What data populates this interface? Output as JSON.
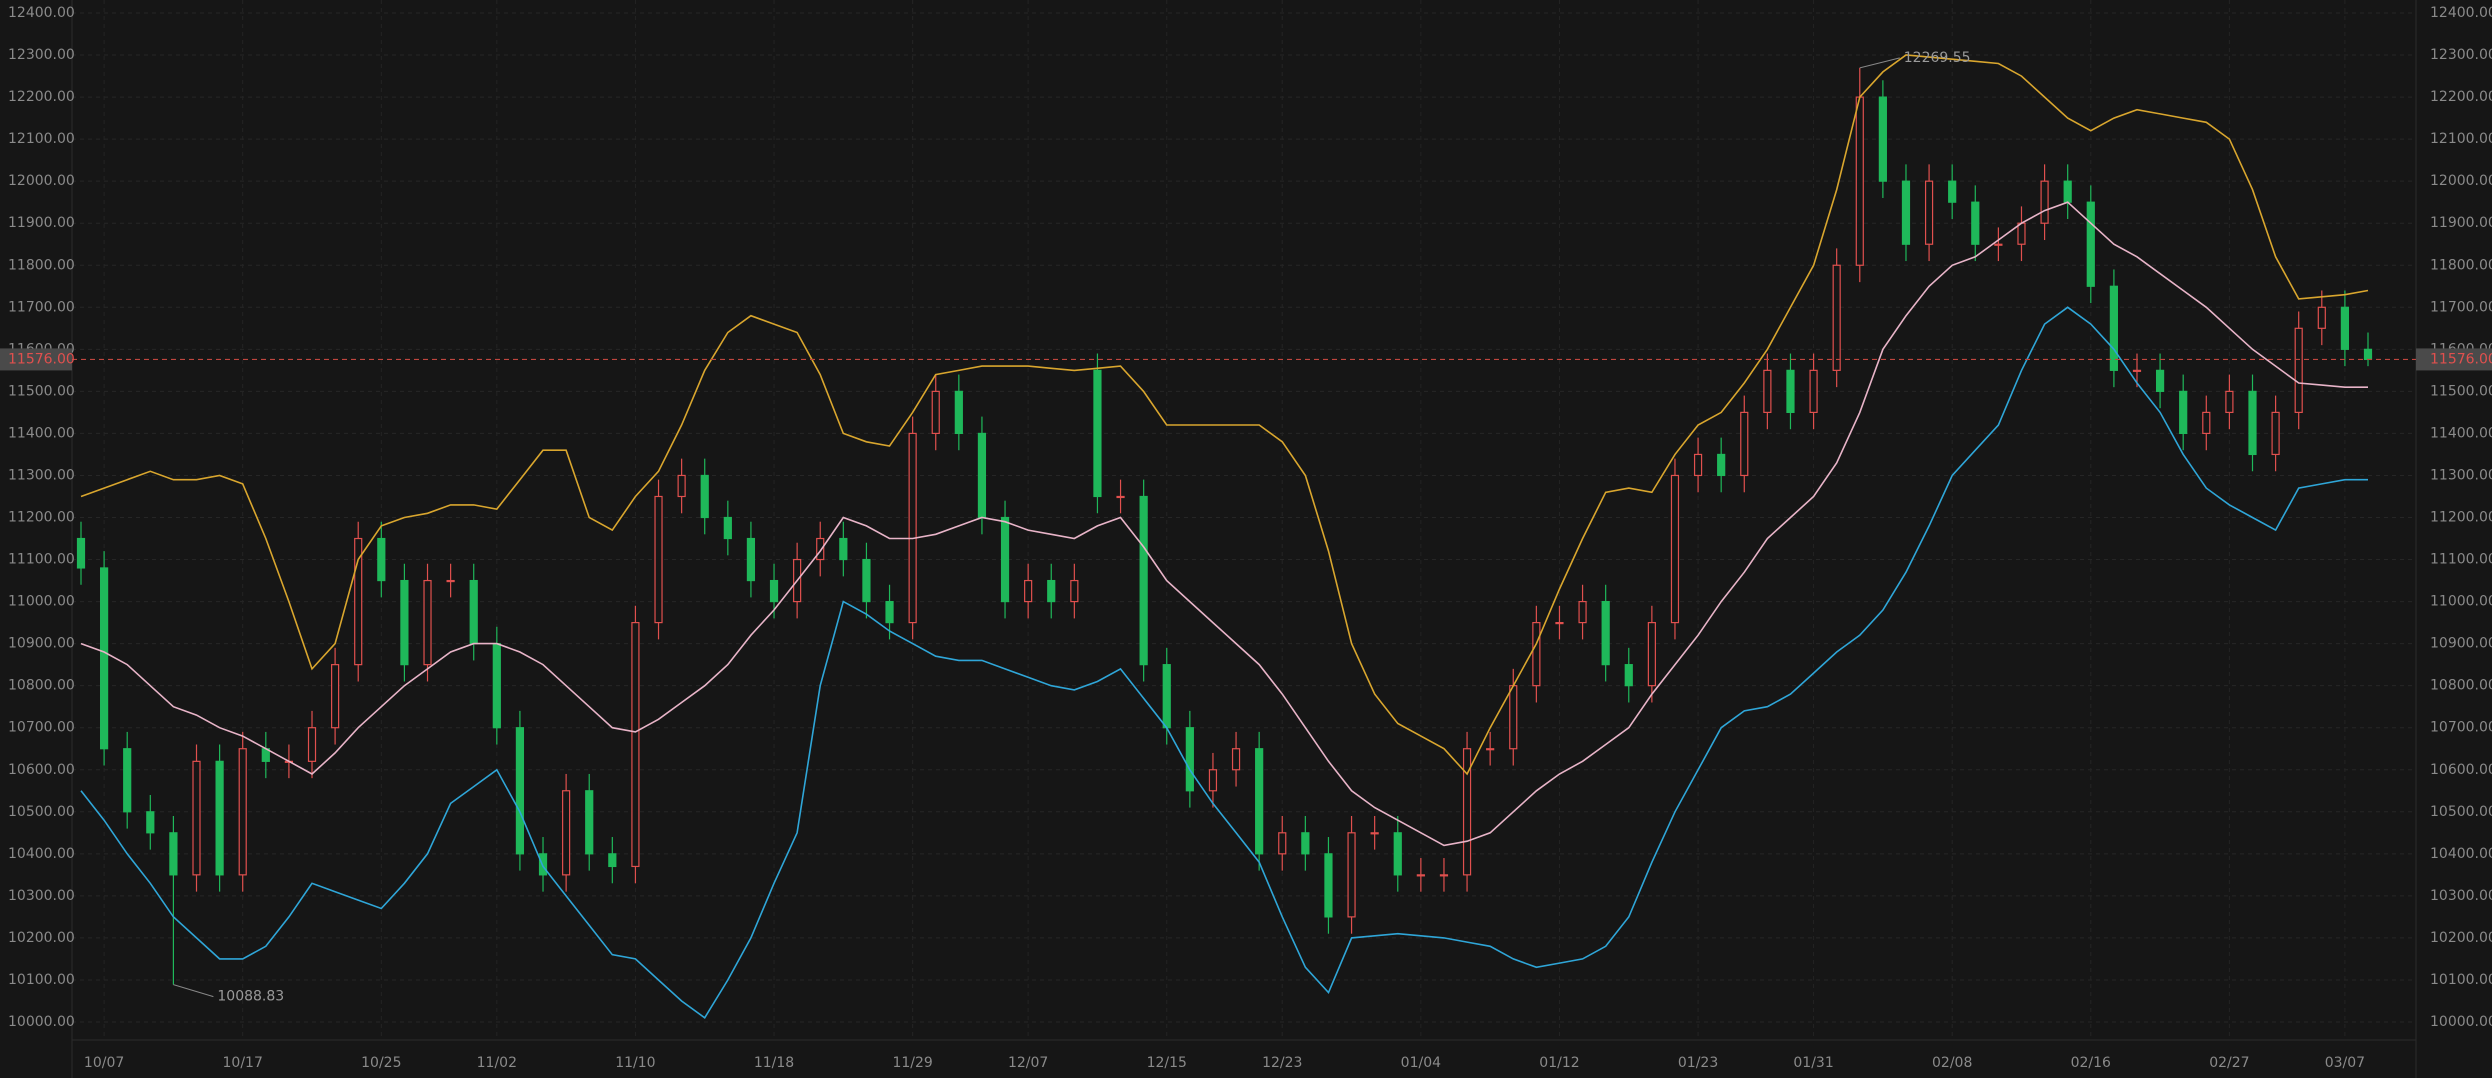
{
  "chart_data": {
    "type": "candlestick",
    "categories": [
      null,
      "10/07",
      null,
      null,
      null,
      null,
      null,
      "10/17",
      null,
      null,
      null,
      null,
      null,
      "10/25",
      null,
      null,
      null,
      null,
      "11/02",
      null,
      null,
      null,
      null,
      null,
      "11/10",
      null,
      null,
      null,
      null,
      null,
      "11/18",
      null,
      null,
      null,
      null,
      null,
      "11/29",
      null,
      null,
      null,
      null,
      "12/07",
      null,
      null,
      null,
      null,
      null,
      "12/15",
      null,
      null,
      null,
      null,
      "12/23",
      null,
      null,
      null,
      null,
      null,
      "01/04",
      null,
      null,
      null,
      null,
      null,
      "01/12",
      null,
      null,
      null,
      null,
      null,
      "01/23",
      null,
      null,
      null,
      null,
      "01/31",
      null,
      null,
      null,
      null,
      null,
      "02/08",
      null,
      null,
      null,
      null,
      null,
      "02/16",
      null,
      null,
      null,
      null,
      null,
      "02/27",
      null,
      null,
      null,
      null,
      "03/07",
      null
    ],
    "open": [
      11150,
      11080,
      10650,
      10500,
      10450,
      10350,
      10620,
      10350,
      10650,
      10620,
      10620,
      10700,
      10850,
      11150,
      11050,
      10850,
      11050,
      11050,
      10900,
      10700,
      10400,
      10350,
      10550,
      10400,
      10370,
      10950,
      11250,
      11300,
      11200,
      11150,
      11050,
      11000,
      11100,
      11150,
      11100,
      11000,
      10950,
      11400,
      11500,
      11400,
      11200,
      11000,
      11050,
      11000,
      11550,
      11250,
      11250,
      10850,
      10700,
      10550,
      10600,
      10650,
      10400,
      10450,
      10400,
      10250,
      10450,
      10450,
      10350,
      10350,
      10350,
      10650,
      10650,
      10800,
      10950,
      10950,
      11000,
      10850,
      10800,
      10950,
      11300,
      11350,
      11300,
      11450,
      11550,
      11450,
      11550,
      11800,
      12200,
      12000,
      11850,
      12000,
      11950,
      11850,
      11850,
      11900,
      12000,
      11950,
      11750,
      11550,
      11550,
      11500,
      11400,
      11450,
      11500,
      11350,
      11450,
      11650,
      11700,
      11600
    ],
    "high": [
      11190,
      11120,
      10690,
      10540,
      10490,
      10660,
      10660,
      10690,
      10690,
      10660,
      10740,
      10890,
      11190,
      11190,
      11090,
      11090,
      11090,
      11090,
      10940,
      10740,
      10440,
      10590,
      10590,
      10440,
      10990,
      11290,
      11340,
      11340,
      11240,
      11190,
      11090,
      11140,
      11190,
      11190,
      11140,
      11040,
      11440,
      11540,
      11540,
      11440,
      11240,
      11090,
      11090,
      11090,
      11590,
      11290,
      11290,
      10890,
      10740,
      10640,
      10690,
      10690,
      10490,
      10490,
      10440,
      10490,
      10490,
      10490,
      10390,
      10390,
      10690,
      10690,
      10840,
      10990,
      10990,
      11040,
      11040,
      10890,
      10990,
      11340,
      11390,
      11390,
      11490,
      11590,
      11590,
      11590,
      11840,
      12269.55,
      12240,
      12040,
      12040,
      12040,
      11990,
      11890,
      11940,
      12040,
      12040,
      11990,
      11790,
      11590,
      11590,
      11540,
      11490,
      11540,
      11540,
      11490,
      11690,
      11740,
      11740,
      11640
    ],
    "low": [
      11040,
      10610,
      10460,
      10410,
      10088.83,
      10310,
      10310,
      10310,
      10580,
      10580,
      10580,
      10660,
      10810,
      11010,
      10810,
      10810,
      11010,
      10860,
      10660,
      10360,
      10310,
      10310,
      10360,
      10330,
      10330,
      10910,
      11210,
      11160,
      11110,
      11010,
      10960,
      10960,
      11060,
      11060,
      10960,
      10910,
      10910,
      11360,
      11360,
      11160,
      10960,
      10960,
      10960,
      10960,
      11210,
      11210,
      10810,
      10660,
      10510,
      10510,
      10560,
      10360,
      10360,
      10360,
      10210,
      10210,
      10410,
      10310,
      10310,
      10310,
      10310,
      10610,
      10610,
      10760,
      10910,
      10910,
      10810,
      10760,
      10760,
      10910,
      11260,
      11260,
      11260,
      11410,
      11410,
      11410,
      11510,
      11760,
      11960,
      11810,
      11810,
      11910,
      11810,
      11810,
      11810,
      11860,
      11910,
      11710,
      11510,
      11510,
      11460,
      11360,
      11360,
      11410,
      11310,
      11310,
      11410,
      11610,
      11560,
      11560
    ],
    "close": [
      11080,
      10650,
      10500,
      10450,
      10350,
      10620,
      10350,
      10650,
      10620,
      10620,
      10700,
      10850,
      11150,
      11050,
      10850,
      11050,
      11050,
      10900,
      10700,
      10400,
      10350,
      10550,
      10400,
      10370,
      10950,
      11250,
      11300,
      11200,
      11150,
      11050,
      11000,
      11100,
      11150,
      11100,
      11000,
      10950,
      11400,
      11500,
      11400,
      11200,
      11000,
      11050,
      11000,
      11050,
      11250,
      11250,
      10850,
      10700,
      10550,
      10600,
      10650,
      10400,
      10450,
      10400,
      10250,
      10450,
      10450,
      10350,
      10350,
      10350,
      10650,
      10650,
      10800,
      10950,
      10950,
      11000,
      10850,
      10800,
      10950,
      11300,
      11350,
      11300,
      11450,
      11550,
      11450,
      11550,
      11800,
      12200,
      12000,
      11850,
      12000,
      11950,
      11850,
      11850,
      11900,
      12000,
      11950,
      11750,
      11550,
      11550,
      11500,
      11400,
      11450,
      11500,
      11350,
      11450,
      11650,
      11700,
      11600,
      11576
    ],
    "up_color": "#e0504e",
    "down_color": "#1fb85a",
    "series": [
      {
        "color": "#d9a62e",
        "values": [
          11250,
          11270,
          11290,
          11310,
          11290,
          11290,
          11300,
          11280,
          11150,
          11000,
          10840,
          10900,
          11100,
          11180,
          11200,
          11210,
          11230,
          11230,
          11220,
          11290,
          11360,
          11360,
          11200,
          11170,
          11250,
          11310,
          11420,
          11550,
          11640,
          11680,
          11660,
          11640,
          11540,
          11400,
          11380,
          11370,
          11450,
          11540,
          11550,
          11560,
          11560,
          11560,
          11555,
          11550,
          11555,
          11560,
          11500,
          11420,
          11420,
          11420,
          11420,
          11420,
          11380,
          11300,
          11120,
          10900,
          10780,
          10710,
          10680,
          10650,
          10590,
          10700,
          10800,
          10900,
          11030,
          11150,
          11260,
          11270,
          11260,
          11350,
          11420,
          11450,
          11520,
          11600,
          11700,
          11800,
          11980,
          12200,
          12260,
          12300,
          12295,
          12290,
          12285,
          12280,
          12250,
          12200,
          12150,
          12120,
          12150,
          12170,
          12160,
          12150,
          12140,
          12100,
          11980,
          11820,
          11720,
          11725,
          11730,
          11740
        ]
      },
      {
        "color": "#e8b4c8",
        "values": [
          10900,
          10880,
          10850,
          10800,
          10750,
          10730,
          10700,
          10680,
          10650,
          10620,
          10590,
          10640,
          10700,
          10750,
          10800,
          10840,
          10880,
          10900,
          10900,
          10880,
          10850,
          10800,
          10750,
          10700,
          10690,
          10720,
          10760,
          10800,
          10850,
          10920,
          10980,
          11050,
          11120,
          11200,
          11180,
          11150,
          11150,
          11160,
          11180,
          11200,
          11190,
          11170,
          11160,
          11150,
          11180,
          11200,
          11130,
          11050,
          11000,
          10950,
          10900,
          10850,
          10780,
          10700,
          10620,
          10550,
          10510,
          10480,
          10450,
          10420,
          10430,
          10450,
          10500,
          10550,
          10590,
          10620,
          10660,
          10700,
          10780,
          10850,
          10920,
          11000,
          11070,
          11150,
          11200,
          11250,
          11330,
          11450,
          11600,
          11680,
          11750,
          11800,
          11820,
          11860,
          11900,
          11930,
          11950,
          11900,
          11850,
          11820,
          11780,
          11740,
          11700,
          11650,
          11600,
          11560,
          11520,
          11515,
          11510,
          11510
        ]
      },
      {
        "color": "#2fa6d8",
        "values": [
          10550,
          10480,
          10400,
          10330,
          10250,
          10200,
          10150,
          10150,
          10180,
          10250,
          10330,
          10310,
          10290,
          10270,
          10330,
          10400,
          10520,
          10560,
          10600,
          10500,
          10370,
          10300,
          10230,
          10160,
          10150,
          10100,
          10050,
          10010,
          10100,
          10200,
          10330,
          10450,
          10800,
          11000,
          10970,
          10930,
          10900,
          10870,
          10860,
          10860,
          10840,
          10820,
          10800,
          10790,
          10810,
          10840,
          10770,
          10700,
          10600,
          10520,
          10450,
          10380,
          10250,
          10130,
          10070,
          10200,
          10205,
          10210,
          10205,
          10200,
          10190,
          10180,
          10150,
          10130,
          10140,
          10150,
          10180,
          10250,
          10380,
          10500,
          10600,
          10700,
          10740,
          10750,
          10780,
          10830,
          10880,
          10920,
          10980,
          11070,
          11180,
          11300,
          11360,
          11420,
          11550,
          11660,
          11700,
          11660,
          11600,
          11520,
          11450,
          11350,
          11270,
          11230,
          11200,
          11170,
          11270,
          11280,
          11290,
          11290
        ]
      }
    ],
    "ylim": [
      10000,
      12400
    ],
    "yticks": [
      {
        "value": 10000,
        "label": "10000.00"
      },
      {
        "value": 10100,
        "label": "10100.00"
      },
      {
        "value": 10200,
        "label": "10200.00"
      },
      {
        "value": 10300,
        "label": "10300.00"
      },
      {
        "value": 10400,
        "label": "10400.00"
      },
      {
        "value": 10500,
        "label": "10500.00"
      },
      {
        "value": 10600,
        "label": "10600.00"
      },
      {
        "value": 10700,
        "label": "10700.00"
      },
      {
        "value": 10800,
        "label": "10800.00"
      },
      {
        "value": 10900,
        "label": "10900.00"
      },
      {
        "value": 11000,
        "label": "11000.00"
      },
      {
        "value": 11100,
        "label": "11100.00"
      },
      {
        "value": 11200,
        "label": "11200.00"
      },
      {
        "value": 11300,
        "label": "11300.00"
      },
      {
        "value": 11400,
        "label": "11400.00"
      },
      {
        "value": 11500,
        "label": "11500.00"
      },
      {
        "value": 11600,
        "label": "11600.00"
      },
      {
        "value": 11700,
        "label": "11700.00"
      },
      {
        "value": 11800,
        "label": "11800.00"
      },
      {
        "value": 11900,
        "label": "11900.00"
      },
      {
        "value": 12000,
        "label": "12000.00"
      },
      {
        "value": 12100,
        "label": "12100.00"
      },
      {
        "value": 12200,
        "label": "12200.00"
      },
      {
        "value": 12300,
        "label": "12300.00"
      },
      {
        "value": 12400,
        "label": "12400.00"
      }
    ],
    "grid": true,
    "last_price": {
      "value": 11576,
      "label": "11576.00"
    },
    "annotations": [
      {
        "value": 12269.55,
        "label": "12269.55"
      },
      {
        "value": 10088.83,
        "label": "10088.83"
      }
    ]
  }
}
